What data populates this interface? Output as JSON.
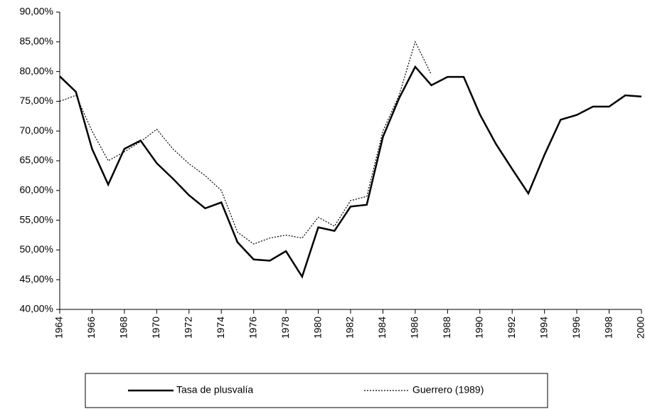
{
  "chart_data": {
    "type": "line",
    "x": [
      1964,
      1965,
      1966,
      1967,
      1968,
      1969,
      1970,
      1971,
      1972,
      1973,
      1974,
      1975,
      1976,
      1977,
      1978,
      1979,
      1980,
      1981,
      1982,
      1983,
      1984,
      1985,
      1986,
      1987,
      1988,
      1989,
      1990,
      1991,
      1992,
      1993,
      1994,
      1995,
      1996,
      1997,
      1998,
      1999,
      2000
    ],
    "series": [
      {
        "name": "Tasa de plusvalía",
        "color": "#000000",
        "style": "solid",
        "values": [
          79.2,
          76.6,
          67,
          61,
          67,
          68.4,
          64.6,
          62,
          59.2,
          57,
          58,
          51.3,
          48.4,
          48.2,
          49.8,
          45.5,
          53.8,
          53.2,
          57.3,
          57.6,
          69,
          75.5,
          80.8,
          77.7,
          79.1,
          79.1,
          72.8,
          67.8,
          63.6,
          59.5,
          66,
          71.9,
          72.7,
          74.1,
          74.1,
          76,
          75.8
        ]
      },
      {
        "name": "Guerrero (1989)",
        "color": "#000000",
        "style": "dotted",
        "values": [
          75,
          76,
          70,
          65,
          66.5,
          68.2,
          70.3,
          67,
          64.5,
          62.5,
          60,
          53,
          51,
          52,
          52.5,
          52,
          55.5,
          54,
          58.3,
          59,
          70,
          76,
          85,
          79.5,
          null,
          null,
          null,
          null,
          null,
          null,
          null,
          null,
          null,
          null,
          null,
          null,
          null
        ]
      }
    ],
    "xlim": [
      1964,
      2000
    ],
    "xticks": [
      1964,
      1966,
      1968,
      1970,
      1972,
      1974,
      1976,
      1978,
      1980,
      1982,
      1984,
      1986,
      1988,
      1990,
      1992,
      1994,
      1996,
      1998,
      2000
    ],
    "ylim": [
      40,
      90
    ],
    "yticks": [
      {
        "value": 40,
        "label": "40,00%"
      },
      {
        "value": 45,
        "label": "45,00%"
      },
      {
        "value": 50,
        "label": "50,00%"
      },
      {
        "value": 55,
        "label": "55,00%"
      },
      {
        "value": 60,
        "label": "60,00%"
      },
      {
        "value": 65,
        "label": "65,00%"
      },
      {
        "value": 70,
        "label": "70,00%"
      },
      {
        "value": 75,
        "label": "75,00%"
      },
      {
        "value": 80,
        "label": "80,00%"
      },
      {
        "value": 85,
        "label": "85,00%"
      },
      {
        "value": 90,
        "label": "90,00%"
      }
    ],
    "grid": false,
    "legend": "bottom"
  }
}
